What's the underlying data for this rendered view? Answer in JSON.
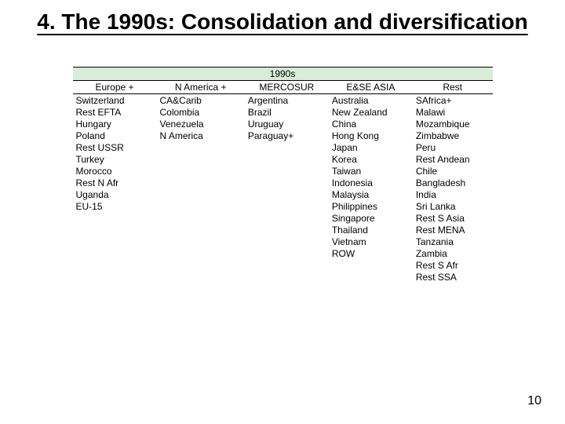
{
  "title": "4. The 1990s: Consolidation and diversification",
  "page_number": "10",
  "table": {
    "banner": "1990s",
    "columns": [
      "Europe +",
      "N America +",
      "MERCOSUR",
      "E&SE ASIA",
      "Rest"
    ],
    "col_widths": [
      "20%",
      "21%",
      "20%",
      "20%",
      "19%"
    ],
    "rows": [
      [
        "Switzerland",
        "CA&Carib",
        "Argentina",
        "Australia",
        "SAfrica+"
      ],
      [
        "Rest EFTA",
        "Colombia",
        "Brazil",
        "New Zealand",
        "Malawi"
      ],
      [
        "Hungary",
        "Venezuela",
        "Uruguay",
        "China",
        "Mozambique"
      ],
      [
        "Poland",
        "N America",
        "Paraguay+",
        "Hong Kong",
        "Zimbabwe"
      ],
      [
        "Rest USSR",
        "",
        "",
        "Japan",
        "Peru"
      ],
      [
        "Turkey",
        "",
        "",
        "Korea",
        "Rest Andean"
      ],
      [
        "Morocco",
        "",
        "",
        "Taiwan",
        "Chile"
      ],
      [
        "Rest N Afr",
        "",
        "",
        "Indonesia",
        "Bangladesh"
      ],
      [
        "Uganda",
        "",
        "",
        "Malaysia",
        "India"
      ],
      [
        "EU-15",
        "",
        "",
        "Philippines",
        "Sri Lanka"
      ],
      [
        "",
        "",
        "",
        "Singapore",
        "Rest S Asia"
      ],
      [
        "",
        "",
        "",
        "Thailand",
        "Rest MENA"
      ],
      [
        "",
        "",
        "",
        "Vietnam",
        "Tanzania"
      ],
      [
        "",
        "",
        "",
        "ROW",
        "Zambia"
      ],
      [
        "",
        "",
        "",
        "",
        "Rest S Afr"
      ],
      [
        "",
        "",
        "",
        "",
        "Rest SSA"
      ]
    ],
    "banner_bg": "#d8ecd8",
    "border_color": "#000000",
    "font_size": 12
  }
}
